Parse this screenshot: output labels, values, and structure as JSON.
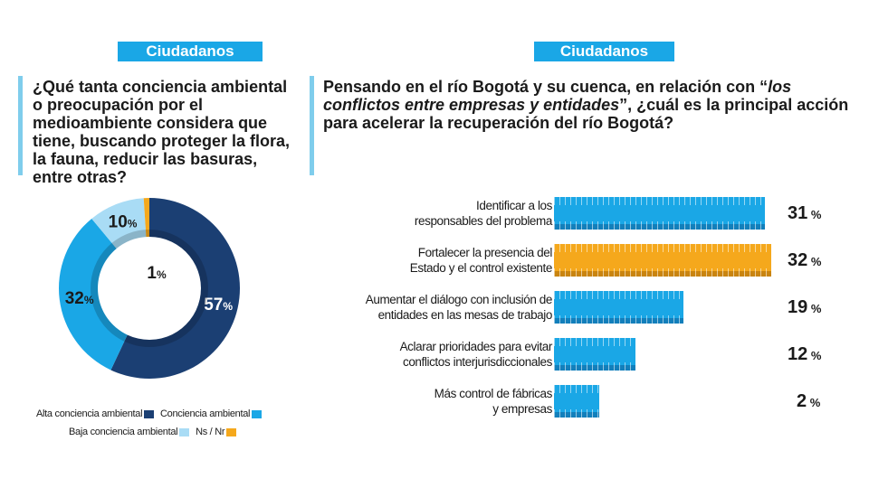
{
  "left": {
    "tag": "Ciudadanos",
    "question": "¿Qué tanta conciencia ambiental o preocupación por el medioambiente considera que tiene, buscando proteger la flora, la fauna, reducir las basuras, entre otras?"
  },
  "right": {
    "tag": "Ciudadanos",
    "question_pre": "Pensando en el río Bogotá y su cuenca, en relación con “",
    "question_italic": "los conflictos entre empresas y entidades",
    "question_post": "”, ¿cuál es la principal acción para acelerar la recuperación del río Bogotá?"
  },
  "colors": {
    "dark_blue": "#1b3f73",
    "blue": "#1aa7e6",
    "light_blue": "#a9dcf5",
    "orange": "#f5a81c",
    "bar_bottom": "#127fbb"
  },
  "chart_data": [
    {
      "type": "pie",
      "variant": "donut",
      "slices": [
        {
          "label": "Alta conciencia ambiental",
          "value": 57,
          "display": "57",
          "color": "#1b3f73"
        },
        {
          "label": "Conciencia ambiental",
          "value": 32,
          "display": "32",
          "color": "#1aa7e6"
        },
        {
          "label": "Baja conciencia ambiental",
          "value": 10,
          "display": "10",
          "color": "#a9dcf5"
        },
        {
          "label": "Ns / Nr",
          "value": 1,
          "display": "1",
          "color": "#f5a81c"
        }
      ],
      "unit": "%",
      "legend_position": "bottom"
    },
    {
      "type": "bar",
      "orientation": "horizontal",
      "categories": [
        "Identificar a los responsables del problema",
        "Fortalecer la presencia del Estado y el control existente",
        "Aumentar el diálogo con inclusión de entidades en las mesas de trabajo",
        "Aclarar prioridades para evitar conflictos interjurisdiccionales",
        "Más control de fábricas y empresas"
      ],
      "category_lines": [
        [
          "Identificar a los",
          "responsables del problema"
        ],
        [
          "Fortalecer la presencia del",
          "Estado y el control existente"
        ],
        [
          "Aumentar el diálogo con inclusión de",
          "entidades en las mesas de trabajo"
        ],
        [
          "Aclarar prioridades para evitar",
          "conflictos interjurisdiccionales"
        ],
        [
          "Más control de fábricas",
          "y empresas"
        ]
      ],
      "values": [
        31,
        32,
        19,
        12,
        2
      ],
      "value_labels": [
        "31",
        "32",
        "19",
        "12",
        "2"
      ],
      "unit": "%",
      "highlight_index": 1
    }
  ]
}
